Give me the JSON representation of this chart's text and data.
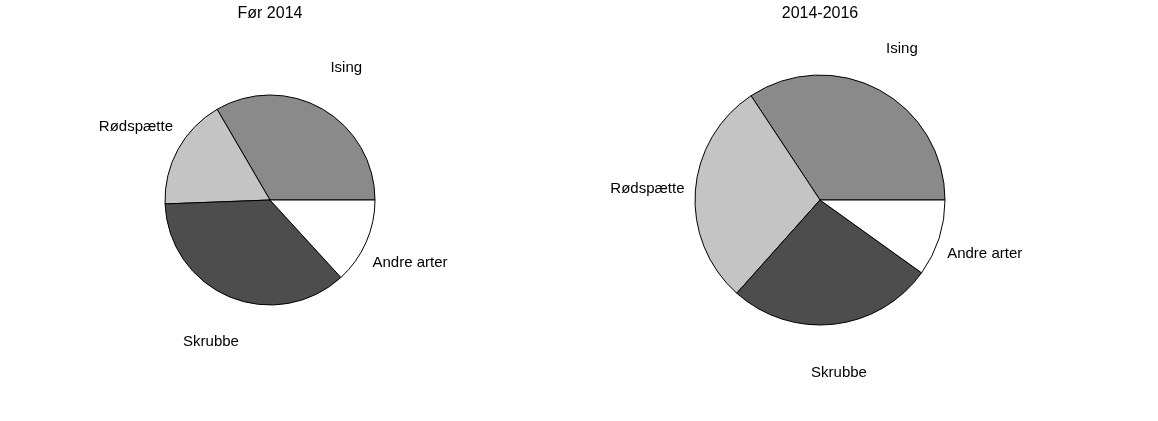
{
  "chart_data": [
    {
      "type": "pie",
      "title": "Før 2014",
      "categories": [
        "Ising",
        "Rødspætte",
        "Skrubbe",
        "Andre arter"
      ],
      "values": [
        33.4,
        17.2,
        36.2,
        13.2
      ],
      "colors": [
        "#8a8a8a",
        "#c4c4c4",
        "#4d4d4d",
        "#ffffff"
      ],
      "legend": false
    },
    {
      "type": "pie",
      "title": "2014-2016",
      "categories": [
        "Ising",
        "Rødspætte",
        "Skrubbe",
        "Andre arter"
      ],
      "values": [
        34.3,
        29.1,
        26.7,
        9.9
      ],
      "colors": [
        "#8a8a8a",
        "#c4c4c4",
        "#4d4d4d",
        "#ffffff"
      ],
      "legend": false
    }
  ]
}
